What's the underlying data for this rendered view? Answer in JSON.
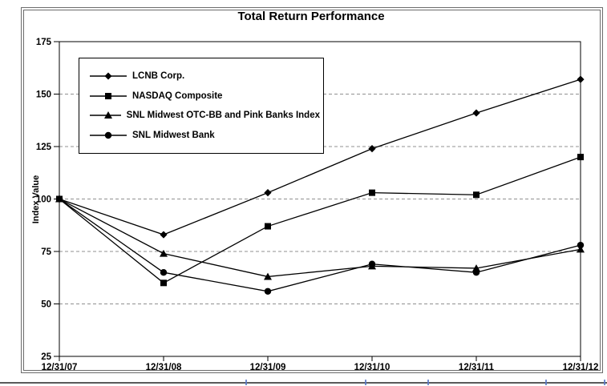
{
  "chart_data": {
    "type": "line",
    "title": "Total Return Performance",
    "ylabel": "Index Value",
    "xlabel": "",
    "x_labels": [
      "12/31/07",
      "12/31/08",
      "12/31/09",
      "12/31/10",
      "12/31/11",
      "12/31/12"
    ],
    "ylim": [
      25,
      175
    ],
    "yticks": [
      25,
      50,
      75,
      100,
      125,
      150,
      175
    ],
    "grid": "horizontal-dashed",
    "legend_position": "upper-left-inside",
    "series": [
      {
        "name": "LCNB Corp.",
        "marker": "diamond",
        "values": [
          100,
          83,
          103,
          124,
          141,
          157
        ]
      },
      {
        "name": "NASDAQ Composite",
        "marker": "square",
        "values": [
          100,
          60,
          87,
          103,
          102,
          120
        ]
      },
      {
        "name": "SNL Midwest OTC-BB and Pink Banks Index",
        "marker": "triangle",
        "values": [
          100,
          74,
          63,
          68,
          67,
          76
        ]
      },
      {
        "name": "SNL Midwest Bank",
        "marker": "circle",
        "values": [
          100,
          65,
          56,
          69,
          65,
          78
        ]
      }
    ],
    "colors": {
      "series_line": "#000000",
      "gridline": "#909090",
      "axis": "#000000",
      "chart_border": "#6b6b6b",
      "table_rule": "#5a5a5a",
      "table_tick": "#5b79c9"
    }
  }
}
